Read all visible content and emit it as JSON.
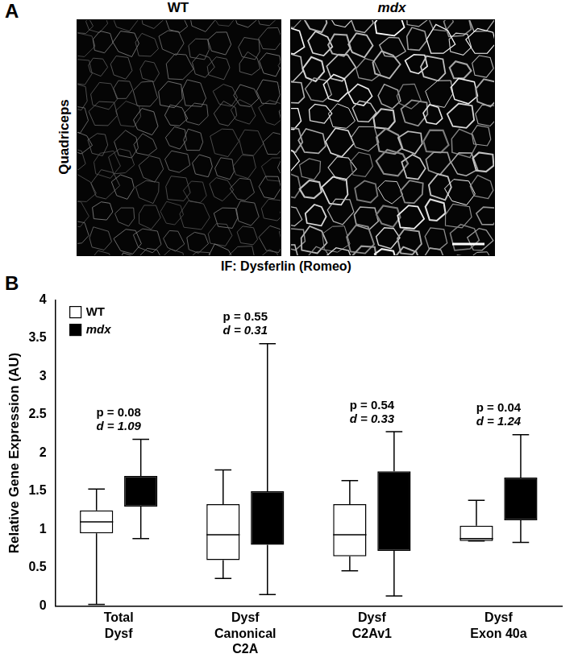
{
  "figure": {
    "panel_a": {
      "label": "A",
      "columns": [
        "WT",
        "mdx"
      ],
      "row_label": "Quadriceps",
      "caption": "IF: Dysferlin (Romeo)"
    },
    "panel_b": {
      "label": "B"
    }
  },
  "chart_data": {
    "type": "boxplot",
    "y_label": "Relative Gene Expression (AU)",
    "categories": [
      [
        "Total",
        "Dysf"
      ],
      [
        "Dysf",
        "Canonical",
        "C2A"
      ],
      [
        "Dysf",
        "C2Av1"
      ],
      [
        "Dysf",
        "Exon 40a"
      ]
    ],
    "series": [
      {
        "name": "WT",
        "color": "#ffffff",
        "values": [
          {
            "min": 0.02,
            "q1": 0.95,
            "median": 1.1,
            "q3": 1.25,
            "max": 1.53
          },
          {
            "min": 0.36,
            "q1": 0.6,
            "median": 0.93,
            "q3": 1.33,
            "max": 1.78
          },
          {
            "min": 0.46,
            "q1": 0.65,
            "median": 0.93,
            "q3": 1.33,
            "max": 1.64
          },
          {
            "min": 0.85,
            "q1": 0.85,
            "median": 0.88,
            "q3": 1.05,
            "max": 1.38
          }
        ]
      },
      {
        "name": "mdx",
        "color": "#000000",
        "values": [
          {
            "min": 0.88,
            "q1": 1.3,
            "median": null,
            "q3": 1.7,
            "max": 2.18
          },
          {
            "min": 0.15,
            "q1": 0.8,
            "median": null,
            "q3": 1.5,
            "max": 3.43
          },
          {
            "min": 0.13,
            "q1": 0.72,
            "median": null,
            "q3": 1.76,
            "max": 2.28
          },
          {
            "min": 0.83,
            "q1": 1.12,
            "median": null,
            "q3": 1.68,
            "max": 2.24
          }
        ]
      }
    ],
    "annotations": [
      [
        "p = 0.08",
        "d = 1.09"
      ],
      [
        "p = 0.55",
        "d = 0.31"
      ],
      [
        "p = 0.54",
        "d = 0.33"
      ],
      [
        "p = 0.04",
        "d = 1.24"
      ]
    ],
    "ylim": [
      0,
      4
    ],
    "yticks": [
      0,
      0.5,
      1,
      1.5,
      2,
      2.5,
      3,
      3.5,
      4
    ],
    "grid": false,
    "legend": "upper left"
  }
}
